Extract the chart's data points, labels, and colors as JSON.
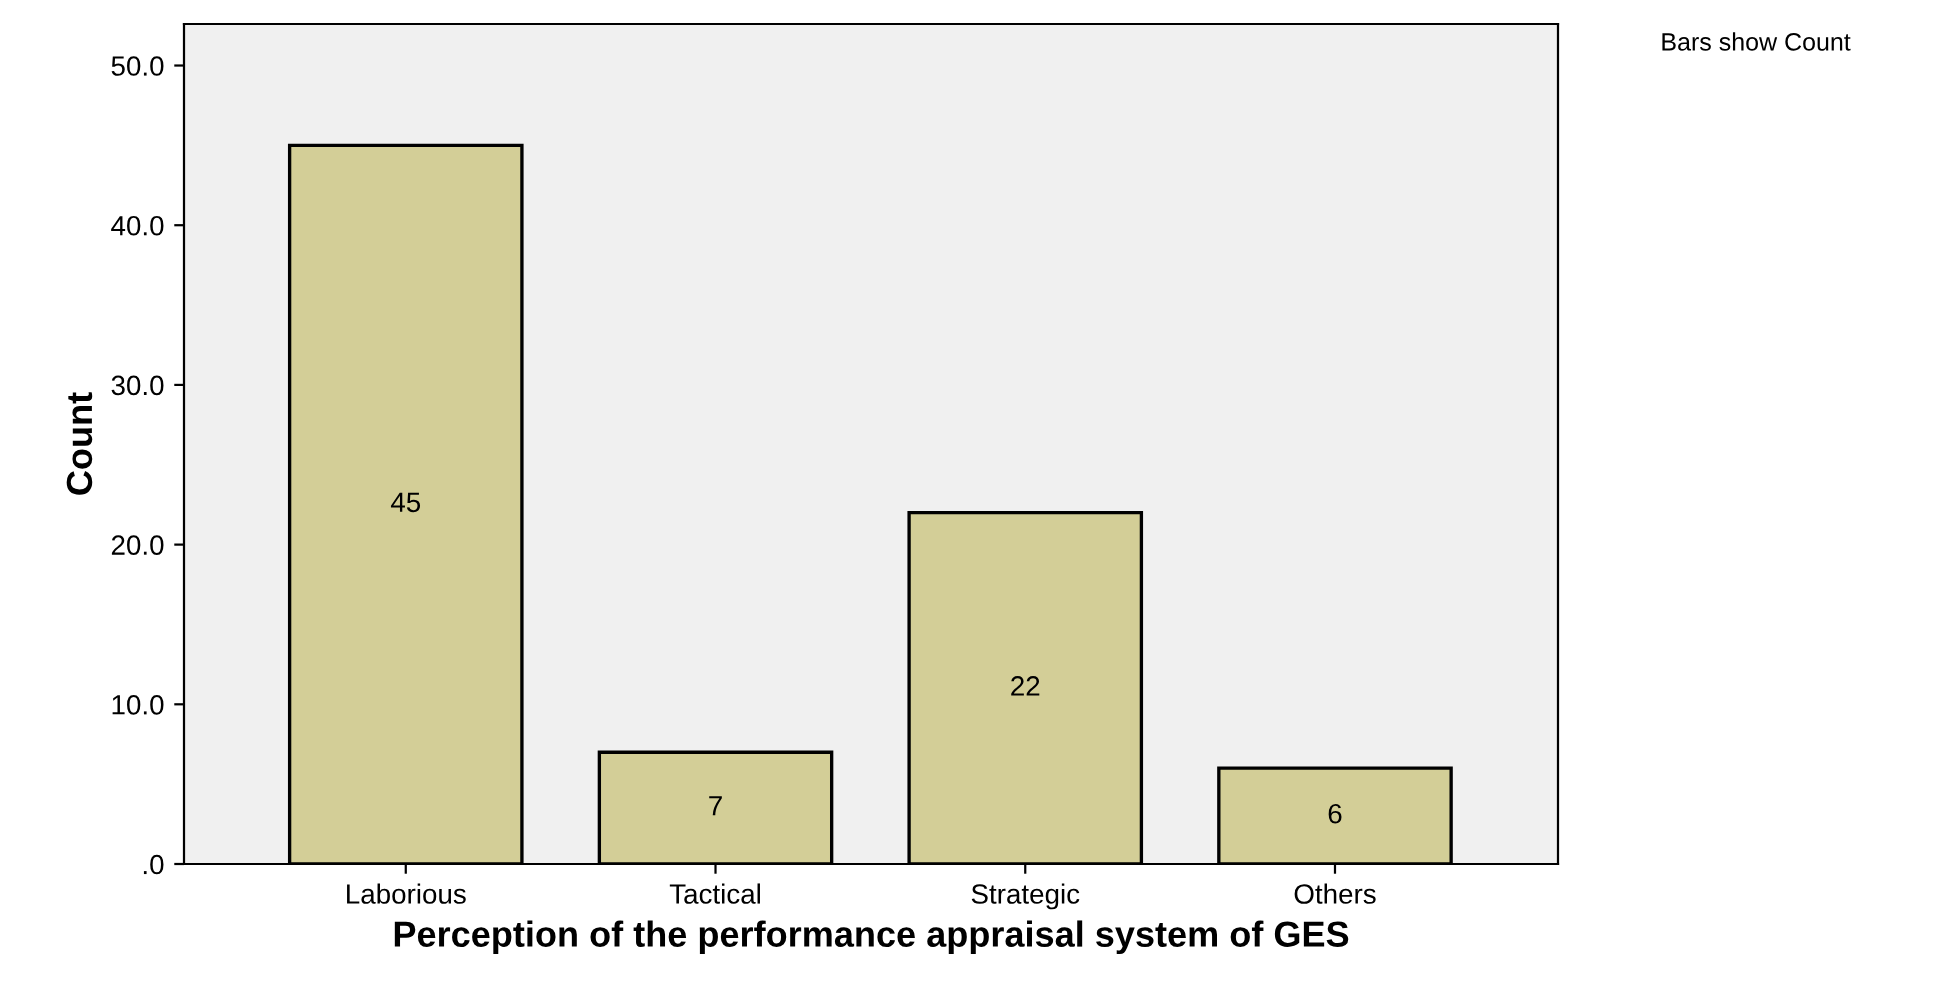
{
  "chart_data": {
    "type": "bar",
    "xlabel": "Perception of the performance appraisal system of GES",
    "ylabel": "Count",
    "categories": [
      "Laborious",
      "Tactical",
      "Strategic",
      "Others"
    ],
    "values": [
      45,
      7,
      22,
      6
    ],
    "color": "#d3ce97",
    "ylim": [
      0,
      52.6
    ],
    "yticks": [
      {
        "value": 0,
        "label": ".0"
      },
      {
        "value": 10,
        "label": "10.0"
      },
      {
        "value": 20,
        "label": "20.0"
      },
      {
        "value": 30,
        "label": "30.0"
      },
      {
        "value": 40,
        "label": "40.0"
      },
      {
        "value": 50,
        "label": "50.0"
      }
    ],
    "data_labels": true,
    "grid": false,
    "annotations": [
      "Bars show Count"
    ]
  }
}
